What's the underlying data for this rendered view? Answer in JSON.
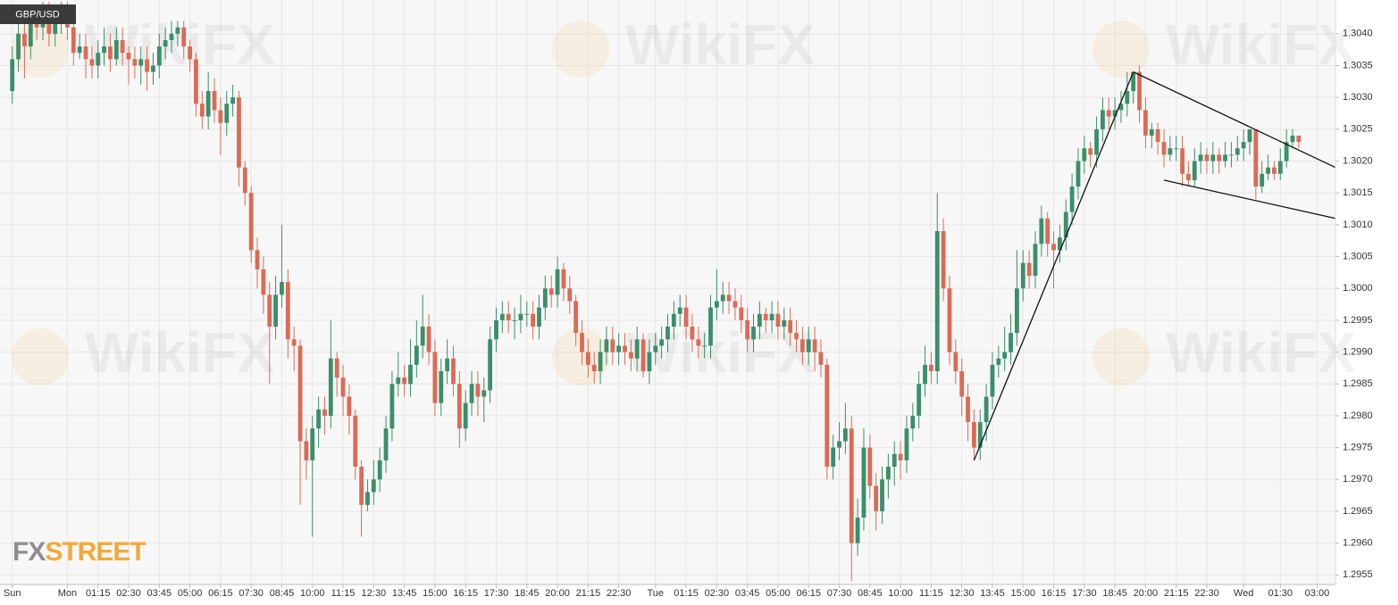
{
  "chart_data": {
    "type": "candlestick",
    "title": "GBP/USD",
    "x": [
      0,
      1,
      2,
      3,
      4,
      5,
      6,
      7,
      8,
      9,
      10,
      11,
      12,
      13,
      14,
      15,
      16,
      17,
      18,
      19,
      20,
      21,
      22,
      23,
      24,
      25,
      26,
      27,
      28,
      29,
      30,
      31,
      32,
      33,
      34,
      35,
      36,
      37,
      38,
      39,
      40,
      41,
      42,
      43,
      44,
      45,
      46,
      47,
      48,
      49,
      50,
      51,
      52,
      53,
      54,
      55,
      56,
      57,
      58,
      59,
      60,
      61,
      62,
      63,
      64,
      65,
      66,
      67,
      68,
      69,
      70,
      71,
      72,
      73,
      74,
      75,
      76,
      77,
      78,
      79,
      80,
      81,
      82,
      83,
      84,
      85,
      86,
      87,
      88,
      89,
      90,
      91,
      92,
      93,
      94,
      95,
      96,
      97,
      98,
      99,
      100,
      101,
      102,
      103,
      104,
      105,
      106,
      107,
      108,
      109,
      110,
      111,
      112,
      113,
      114,
      115,
      116,
      117,
      118,
      119,
      120,
      121,
      122,
      123,
      124,
      125,
      126,
      127,
      128,
      129,
      130,
      131,
      132,
      133,
      134,
      135,
      136,
      137,
      138,
      139,
      140,
      141,
      142,
      143,
      144,
      145,
      146,
      147,
      148,
      149,
      150,
      151,
      152,
      153,
      154,
      155,
      156,
      157,
      158,
      159,
      160,
      161,
      162,
      163,
      164,
      165,
      166,
      167,
      168,
      169,
      170,
      171,
      172,
      173,
      174,
      175,
      176,
      177,
      178,
      179,
      180,
      181,
      182,
      183,
      184,
      185,
      186,
      187,
      188,
      189,
      190,
      191,
      192,
      193,
      194,
      195,
      196,
      197,
      198,
      199,
      200,
      201,
      202,
      203,
      204,
      205,
      206,
      207,
      208,
      209,
      210
    ],
    "open": [
      1.3031,
      1.3036,
      1.304,
      1.3038,
      1.3042,
      1.3041,
      1.3043,
      1.304,
      1.3042,
      1.3043,
      1.3041,
      1.3037,
      1.3038,
      1.3036,
      1.3035,
      1.3037,
      1.3038,
      1.3036,
      1.3039,
      1.3037,
      1.3036,
      1.3035,
      1.3036,
      1.3034,
      1.3035,
      1.3038,
      1.3039,
      1.304,
      1.3041,
      1.3038,
      1.3036,
      1.3029,
      1.3027,
      1.3031,
      1.3028,
      1.3026,
      1.3029,
      1.303,
      1.3019,
      1.3015,
      1.3006,
      1.3003,
      1.2999,
      1.2994,
      1.2999,
      1.3001,
      1.2992,
      1.2991,
      1.2976,
      1.2973,
      1.2978,
      1.2981,
      1.298,
      1.2989,
      1.2986,
      1.2983,
      1.298,
      1.2972,
      1.2966,
      1.2968,
      1.297,
      1.2973,
      1.2978,
      1.2985,
      1.2986,
      1.2985,
      1.2988,
      1.2991,
      1.2994,
      1.299,
      1.2982,
      1.2987,
      1.2989,
      1.2985,
      1.2978,
      1.2982,
      1.2985,
      1.2983,
      1.2984,
      1.2992,
      1.2995,
      1.2996,
      1.2995,
      1.2995,
      1.2996,
      1.2996,
      1.2994,
      1.2997,
      1.3,
      1.2999,
      1.3003,
      1.3,
      1.2998,
      1.2993,
      1.299,
      1.2988,
      1.2987,
      1.299,
      1.2992,
      1.299,
      1.2991,
      1.299,
      1.2989,
      1.2992,
      1.2987,
      1.299,
      1.2991,
      1.2992,
      1.2994,
      1.2996,
      1.2997,
      1.2994,
      1.2992,
      1.2991,
      1.2991,
      1.2997,
      1.2998,
      1.2999,
      1.2998,
      1.2997,
      1.2995,
      1.2992,
      1.2994,
      1.2996,
      1.2995,
      1.2996,
      1.2994,
      1.2995,
      1.2993,
      1.2992,
      1.299,
      1.2992,
      1.299,
      1.2988,
      1.2972,
      1.2975,
      1.2976,
      1.2978,
      1.296,
      1.2964,
      1.2975,
      1.2969,
      1.2965,
      1.297,
      1.2972,
      1.2974,
      1.2973,
      1.2978,
      1.298,
      1.2985,
      1.2988,
      1.2987,
      1.3009,
      1.3,
      1.299,
      1.2987,
      1.2983,
      1.2979,
      1.2975,
      1.2979,
      1.2983,
      1.2988,
      1.2989,
      1.299,
      1.2993,
      1.3,
      1.3004,
      1.3002,
      1.3007,
      1.3011,
      1.3007,
      1.3006,
      1.3008,
      1.3012,
      1.3016,
      1.302,
      1.3022,
      1.3021,
      1.3025,
      1.3028,
      1.3027,
      1.3028,
      1.3029,
      1.3031,
      1.3034,
      1.3028,
      1.3024,
      1.3025,
      1.3023,
      1.3021,
      1.3022,
      1.3022,
      1.3018,
      1.3017,
      1.302,
      1.3021,
      1.302,
      1.3021,
      1.302,
      1.3021,
      1.3021,
      1.3022,
      1.3023,
      1.3025,
      1.3016,
      1.3018,
      1.3019,
      1.3018,
      1.302,
      1.3023,
      1.3024
    ],
    "high": [
      1.3038,
      1.3043,
      1.3042,
      1.3044,
      1.3044,
      1.3045,
      1.3045,
      1.3044,
      1.3045,
      1.3045,
      1.3043,
      1.304,
      1.304,
      1.3038,
      1.3039,
      1.3041,
      1.304,
      1.3041,
      1.3041,
      1.3038,
      1.3038,
      1.3038,
      1.3038,
      1.3037,
      1.304,
      1.3041,
      1.3042,
      1.3042,
      1.3042,
      1.3039,
      1.3037,
      1.3031,
      1.3034,
      1.3033,
      1.303,
      1.3031,
      1.3032,
      1.3031,
      1.302,
      1.3016,
      1.3008,
      1.3005,
      1.3001,
      1.3002,
      1.301,
      1.3003,
      1.2994,
      1.2992,
      1.2978,
      1.298,
      1.2983,
      1.2983,
      1.2995,
      1.299,
      1.2988,
      1.2985,
      1.2981,
      1.2973,
      1.297,
      1.2973,
      1.2975,
      1.298,
      1.2987,
      1.299,
      1.2988,
      1.2992,
      1.2995,
      1.2999,
      1.2996,
      1.2992,
      1.2989,
      1.2992,
      1.2991,
      1.2987,
      1.2984,
      1.2987,
      1.2987,
      1.2986,
      1.2994,
      1.2997,
      1.2998,
      1.2998,
      1.2997,
      1.2999,
      1.2998,
      1.2998,
      1.2999,
      1.3002,
      1.3002,
      1.3005,
      1.3004,
      1.3002,
      1.2999,
      1.2995,
      1.2992,
      1.299,
      1.2992,
      1.2994,
      1.2994,
      1.2993,
      1.2993,
      1.2992,
      1.2994,
      1.2993,
      1.2992,
      1.2993,
      1.2994,
      1.2996,
      1.2998,
      1.2999,
      1.2999,
      1.2996,
      1.2994,
      1.2993,
      1.2999,
      1.3003,
      1.3001,
      1.3001,
      1.3,
      1.2999,
      1.2997,
      1.2996,
      1.2998,
      1.2997,
      1.2998,
      1.2998,
      1.2997,
      1.2997,
      1.2995,
      1.2994,
      1.2994,
      1.2994,
      1.2992,
      1.2989,
      1.2977,
      1.2979,
      1.2982,
      1.298,
      1.2967,
      1.2978,
      1.2977,
      1.2971,
      1.2972,
      1.2974,
      1.2976,
      1.2976,
      1.298,
      1.2982,
      1.2987,
      1.2991,
      1.299,
      1.3015,
      1.3011,
      1.3002,
      1.2992,
      1.2989,
      1.2985,
      1.2981,
      1.2981,
      1.2985,
      1.299,
      1.2991,
      1.2994,
      1.2996,
      1.3006,
      1.3006,
      1.3006,
      1.3009,
      1.3013,
      1.3012,
      1.3009,
      1.301,
      1.3014,
      1.3018,
      1.3022,
      1.3024,
      1.3023,
      1.3027,
      1.303,
      1.303,
      1.303,
      1.3031,
      1.3034,
      1.3034,
      1.3035,
      1.303,
      1.3026,
      1.3026,
      1.3025,
      1.3024,
      1.3024,
      1.3024,
      1.302,
      1.3022,
      1.3023,
      1.3022,
      1.3023,
      1.3022,
      1.3023,
      1.3023,
      1.3024,
      1.3025,
      1.3025,
      1.3025,
      1.302,
      1.3021,
      1.302,
      1.3022,
      1.3025,
      1.3025,
      1.3024
    ],
    "low": [
      1.3029,
      1.3034,
      1.3033,
      1.3036,
      1.3039,
      1.3039,
      1.3038,
      1.3038,
      1.304,
      1.3039,
      1.3035,
      1.3036,
      1.3033,
      1.3033,
      1.3033,
      1.3035,
      1.3034,
      1.3035,
      1.3035,
      1.3032,
      1.3033,
      1.3032,
      1.3031,
      1.3032,
      1.3033,
      1.3036,
      1.3037,
      1.3038,
      1.3036,
      1.3034,
      1.3027,
      1.3025,
      1.3025,
      1.3026,
      1.3021,
      1.3024,
      1.3027,
      1.3016,
      1.3013,
      1.3004,
      1.3,
      1.2996,
      1.2985,
      1.2992,
      1.2997,
      1.2989,
      1.2987,
      1.2966,
      1.297,
      1.2961,
      1.2975,
      1.2977,
      1.2978,
      1.2983,
      1.298,
      1.2977,
      1.297,
      1.2961,
      1.2965,
      1.2966,
      1.2968,
      1.2971,
      1.2976,
      1.2983,
      1.2983,
      1.2983,
      1.2986,
      1.2989,
      1.2988,
      1.298,
      1.298,
      1.2985,
      1.2983,
      1.2975,
      1.2976,
      1.298,
      1.298,
      1.2979,
      1.2982,
      1.299,
      1.2993,
      1.2993,
      1.2992,
      1.2993,
      1.2994,
      1.2992,
      1.2992,
      1.2995,
      1.2997,
      1.2997,
      1.2998,
      1.2996,
      1.2991,
      1.2988,
      1.2986,
      1.2985,
      1.2985,
      1.2988,
      1.2988,
      1.2988,
      1.2988,
      1.2987,
      1.2987,
      1.2986,
      1.2985,
      1.2988,
      1.2989,
      1.299,
      1.2992,
      1.2994,
      1.2992,
      1.299,
      1.2989,
      1.2989,
      1.2989,
      1.2995,
      1.2996,
      1.2996,
      1.2995,
      1.2993,
      1.299,
      1.299,
      1.2992,
      1.2993,
      1.2993,
      1.2992,
      1.2992,
      1.2991,
      1.299,
      1.2988,
      1.2988,
      1.2987,
      1.2986,
      1.297,
      1.297,
      1.2973,
      1.2974,
      1.2954,
      1.2958,
      1.2962,
      1.2967,
      1.2962,
      1.2963,
      1.2967,
      1.2969,
      1.297,
      1.2971,
      1.2976,
      1.2978,
      1.2983,
      1.2985,
      1.2985,
      1.2998,
      1.2988,
      1.2985,
      1.298,
      1.2976,
      1.2973,
      1.2973,
      1.2976,
      1.2981,
      1.2986,
      1.2987,
      1.2988,
      1.2991,
      1.2998,
      1.3,
      1.3,
      1.3005,
      1.3005,
      1.3,
      1.3004,
      1.3006,
      1.301,
      1.3014,
      1.3018,
      1.3019,
      1.3019,
      1.3023,
      1.3025,
      1.3025,
      1.3026,
      1.3027,
      1.3029,
      1.3026,
      1.3022,
      1.3022,
      1.3021,
      1.3019,
      1.302,
      1.302,
      1.3016,
      1.3016,
      1.3016,
      1.3018,
      1.3018,
      1.3018,
      1.3018,
      1.3019,
      1.3019,
      1.302,
      1.302,
      1.3021,
      1.3014,
      1.3015,
      1.3017,
      1.3017,
      1.3017,
      1.3019,
      1.3022,
      1.3022
    ],
    "close": [
      1.3036,
      1.304,
      1.3038,
      1.3042,
      1.3041,
      1.3043,
      1.304,
      1.3042,
      1.3043,
      1.3041,
      1.3037,
      1.3038,
      1.3036,
      1.3035,
      1.3037,
      1.3038,
      1.3036,
      1.3039,
      1.3037,
      1.3036,
      1.3035,
      1.3036,
      1.3034,
      1.3035,
      1.3038,
      1.3039,
      1.304,
      1.3041,
      1.3038,
      1.3036,
      1.3029,
      1.3027,
      1.3031,
      1.3028,
      1.3026,
      1.3029,
      1.303,
      1.3019,
      1.3015,
      1.3006,
      1.3003,
      1.2999,
      1.2994,
      1.2999,
      1.3001,
      1.2992,
      1.2991,
      1.2976,
      1.2973,
      1.2978,
      1.2981,
      1.298,
      1.2989,
      1.2986,
      1.2983,
      1.298,
      1.2972,
      1.2966,
      1.2968,
      1.297,
      1.2973,
      1.2978,
      1.2985,
      1.2986,
      1.2985,
      1.2988,
      1.2991,
      1.2994,
      1.299,
      1.2982,
      1.2987,
      1.2989,
      1.2985,
      1.2978,
      1.2982,
      1.2985,
      1.2983,
      1.2984,
      1.2992,
      1.2995,
      1.2996,
      1.2995,
      1.2995,
      1.2996,
      1.2996,
      1.2994,
      1.2997,
      1.3,
      1.2999,
      1.3003,
      1.3,
      1.2998,
      1.2993,
      1.299,
      1.2988,
      1.2987,
      1.299,
      1.2992,
      1.299,
      1.2991,
      1.299,
      1.2989,
      1.2992,
      1.2987,
      1.299,
      1.2991,
      1.2992,
      1.2994,
      1.2996,
      1.2997,
      1.2994,
      1.2992,
      1.2991,
      1.2991,
      1.2997,
      1.2998,
      1.2999,
      1.2998,
      1.2997,
      1.2995,
      1.2992,
      1.2994,
      1.2996,
      1.2995,
      1.2996,
      1.2994,
      1.2995,
      1.2993,
      1.2992,
      1.299,
      1.2992,
      1.299,
      1.2988,
      1.2972,
      1.2975,
      1.2976,
      1.2978,
      1.296,
      1.2964,
      1.2975,
      1.2969,
      1.2965,
      1.297,
      1.2972,
      1.2974,
      1.2973,
      1.2978,
      1.298,
      1.2985,
      1.2988,
      1.2987,
      1.3009,
      1.3,
      1.299,
      1.2987,
      1.2983,
      1.2979,
      1.2975,
      1.2979,
      1.2983,
      1.2988,
      1.2989,
      1.299,
      1.2993,
      1.3,
      1.3004,
      1.3002,
      1.3007,
      1.3011,
      1.3007,
      1.3006,
      1.3008,
      1.3012,
      1.3016,
      1.302,
      1.3022,
      1.3021,
      1.3025,
      1.3028,
      1.3027,
      1.3028,
      1.3029,
      1.3031,
      1.3034,
      1.3028,
      1.3024,
      1.3025,
      1.3023,
      1.3021,
      1.3022,
      1.3022,
      1.3018,
      1.3017,
      1.302,
      1.3021,
      1.302,
      1.3021,
      1.302,
      1.3021,
      1.3021,
      1.3022,
      1.3023,
      1.3025,
      1.3016,
      1.3018,
      1.3019,
      1.3018,
      1.302,
      1.3023,
      1.3024,
      1.3023
    ],
    "up_color": "#3a8f6a",
    "down_color": "#dc6a55",
    "xlim": [
      -2,
      216
    ],
    "ylim": [
      1.29535,
      1.30453
    ],
    "xticks": [
      {
        "value": 0,
        "label": "Sun"
      },
      {
        "value": 9,
        "label": "Mon"
      },
      {
        "value": 14,
        "label": "01:15"
      },
      {
        "value": 19,
        "label": "02:30"
      },
      {
        "value": 24,
        "label": "03:45"
      },
      {
        "value": 29,
        "label": "05:00"
      },
      {
        "value": 34,
        "label": "06:15"
      },
      {
        "value": 39,
        "label": "07:30"
      },
      {
        "value": 44,
        "label": "08:45"
      },
      {
        "value": 49,
        "label": "10:00"
      },
      {
        "value": 54,
        "label": "11:15"
      },
      {
        "value": 59,
        "label": "12:30"
      },
      {
        "value": 64,
        "label": "13:45"
      },
      {
        "value": 69,
        "label": "15:00"
      },
      {
        "value": 74,
        "label": "16:15"
      },
      {
        "value": 79,
        "label": "17:30"
      },
      {
        "value": 84,
        "label": "18:45"
      },
      {
        "value": 89,
        "label": "20:00"
      },
      {
        "value": 94,
        "label": "21:15"
      },
      {
        "value": 99,
        "label": "22:30"
      },
      {
        "value": 105,
        "label": "Tue"
      },
      {
        "value": 110,
        "label": "01:15"
      },
      {
        "value": 115,
        "label": "02:30"
      },
      {
        "value": 120,
        "label": "03:45"
      },
      {
        "value": 125,
        "label": "05:00"
      },
      {
        "value": 130,
        "label": "06:15"
      },
      {
        "value": 135,
        "label": "07:30"
      },
      {
        "value": 140,
        "label": "08:45"
      },
      {
        "value": 145,
        "label": "10:00"
      },
      {
        "value": 150,
        "label": "11:15"
      },
      {
        "value": 155,
        "label": "12:30"
      },
      {
        "value": 160,
        "label": "13:45"
      },
      {
        "value": 165,
        "label": "15:00"
      },
      {
        "value": 170,
        "label": "16:15"
      },
      {
        "value": 175,
        "label": "17:30"
      },
      {
        "value": 180,
        "label": "18:45"
      },
      {
        "value": 185,
        "label": "20:00"
      },
      {
        "value": 190,
        "label": "21:15"
      },
      {
        "value": 195,
        "label": "22:30"
      },
      {
        "value": 201,
        "label": "Wed"
      },
      {
        "value": 207,
        "label": "01:30"
      },
      {
        "value": 213,
        "label": "03:00"
      }
    ],
    "yticks": [
      1.2955,
      {
        "value": 1.296,
        "label": "1.2960"
      },
      1.2965,
      {
        "value": 1.297,
        "label": "1.2970"
      },
      1.2975,
      {
        "value": 1.298,
        "label": "1.2980"
      },
      1.2985,
      {
        "value": 1.299,
        "label": "1.2990"
      },
      1.2995,
      {
        "value": 1.3,
        "label": "1.3000"
      },
      1.3005,
      {
        "value": 1.301,
        "label": "1.3010"
      },
      1.3015,
      {
        "value": 1.302,
        "label": "1.3020"
      },
      1.3025,
      {
        "value": 1.303,
        "label": "1.3030"
      },
      1.3035,
      {
        "value": 1.304,
        "label": "1.3040"
      }
    ],
    "grid": true,
    "trendline_color": "#111111",
    "trendlines": [
      {
        "x": [
          157,
          183
        ],
        "y": [
          1.2973,
          1.3034
        ]
      },
      {
        "x": [
          183,
          216
        ],
        "y": [
          1.3034,
          1.3019
        ]
      },
      {
        "x": [
          188,
          216
        ],
        "y": [
          1.3017,
          1.3011
        ]
      }
    ]
  },
  "watermark": "WikiFX",
  "logo": {
    "part1": "FX",
    "part2": "STREET"
  }
}
